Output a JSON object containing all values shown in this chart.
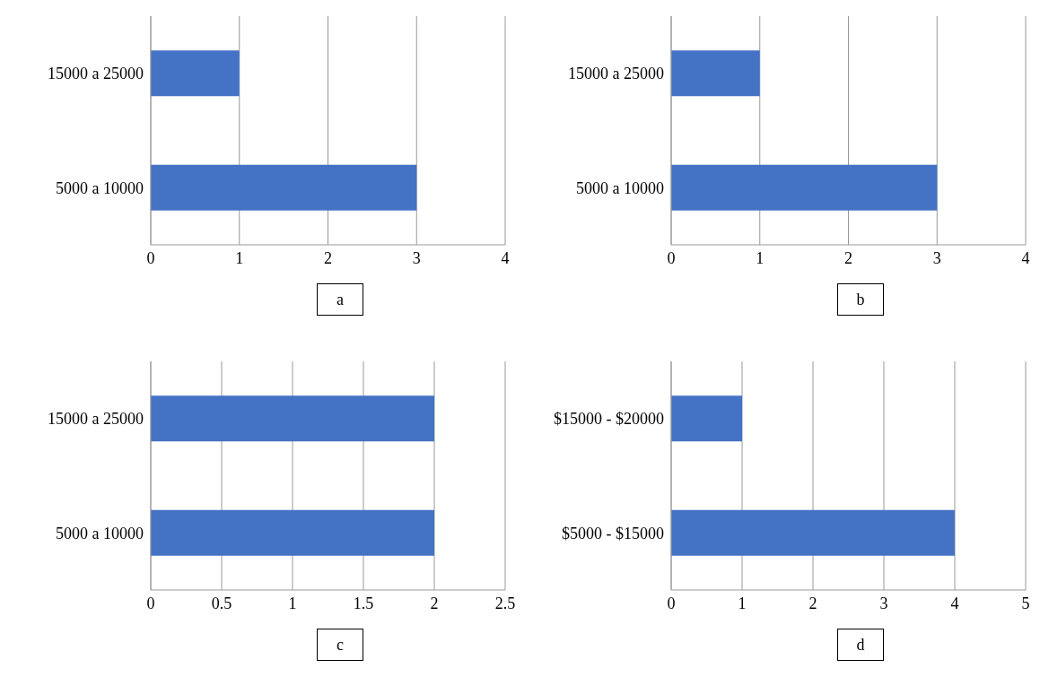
{
  "chart_data": [
    {
      "type": "bar",
      "orientation": "horizontal",
      "categories": [
        "15000 a 25000",
        "5000 a 10000"
      ],
      "values": [
        1,
        3
      ],
      "color": "#4472c4",
      "xlim": [
        0,
        4
      ],
      "xticks": [
        0,
        1,
        2,
        3,
        4
      ],
      "grid": "x",
      "annotations": [
        "a"
      ]
    },
    {
      "type": "bar",
      "orientation": "horizontal",
      "categories": [
        "15000 a 25000",
        "5000 a 10000"
      ],
      "values": [
        1,
        3
      ],
      "color": "#4472c4",
      "xlim": [
        0,
        4
      ],
      "xticks": [
        0,
        1,
        2,
        3,
        4
      ],
      "grid": "x",
      "annotations": [
        "b"
      ]
    },
    {
      "type": "bar",
      "orientation": "horizontal",
      "categories": [
        "15000 a 25000",
        "5000 a 10000"
      ],
      "values": [
        2,
        2
      ],
      "color": "#4472c4",
      "xlim": [
        0,
        2.5
      ],
      "xticks": [
        0,
        0.5,
        1,
        1.5,
        2,
        2.5
      ],
      "grid": "x",
      "annotations": [
        "c"
      ]
    },
    {
      "type": "bar",
      "orientation": "horizontal",
      "categories": [
        "$15000 - $20000",
        "$5000 - $15000"
      ],
      "values": [
        1,
        4
      ],
      "color": "#4472c4",
      "xlim": [
        0,
        5
      ],
      "xticks": [
        0,
        1,
        2,
        3,
        4,
        5
      ],
      "grid": "x",
      "annotations": [
        "d"
      ]
    }
  ]
}
